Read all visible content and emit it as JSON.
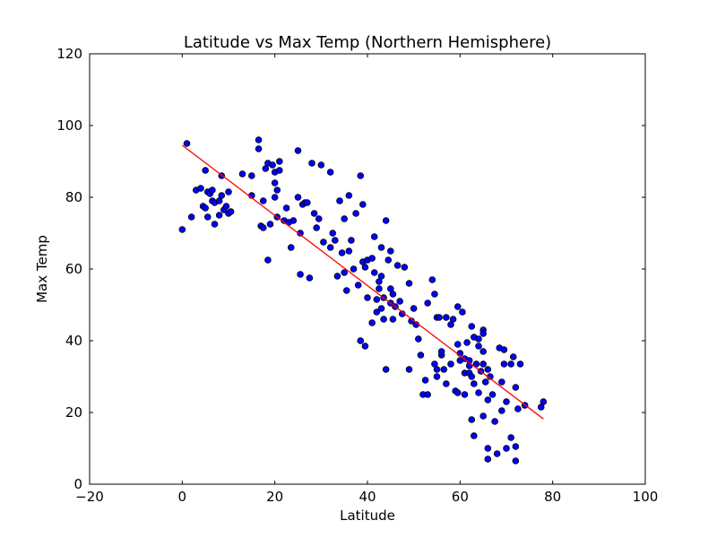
{
  "chart_data": {
    "type": "scatter",
    "title": "Latitude vs Max Temp (Northern Hemisphere)",
    "xlabel": "Latitude",
    "ylabel": "Max Temp",
    "xlim": [
      -20,
      100
    ],
    "ylim": [
      0,
      120
    ],
    "xticks": [
      -20,
      0,
      20,
      40,
      60,
      80,
      100
    ],
    "yticks": [
      0,
      20,
      40,
      60,
      80,
      100,
      120
    ],
    "xtick_labels": [
      "−20",
      "0",
      "20",
      "40",
      "60",
      "80",
      "100"
    ],
    "ytick_labels": [
      "0",
      "20",
      "40",
      "60",
      "80",
      "100",
      "120"
    ],
    "grid": false,
    "colors": {
      "points": "#0000ff",
      "point_edge": "#000000",
      "regression": "#ff0000"
    },
    "regression": {
      "x": [
        0,
        78
      ],
      "y": [
        94.5,
        18.2
      ]
    },
    "series": [
      {
        "points": [
          [
            0,
            71
          ],
          [
            1,
            95
          ],
          [
            2,
            74.5
          ],
          [
            3,
            82
          ],
          [
            4,
            82.5
          ],
          [
            4.5,
            77.5
          ],
          [
            5,
            77
          ],
          [
            5,
            87.5
          ],
          [
            5.5,
            74.5
          ],
          [
            5.5,
            81.5
          ],
          [
            6,
            81
          ],
          [
            6.5,
            79
          ],
          [
            6.5,
            82
          ],
          [
            7,
            72.5
          ],
          [
            7,
            78.5
          ],
          [
            8,
            79
          ],
          [
            8,
            75
          ],
          [
            8.5,
            86
          ],
          [
            8.5,
            80.5
          ],
          [
            9,
            76.5
          ],
          [
            9.5,
            77.5
          ],
          [
            10,
            81.5
          ],
          [
            10,
            75.5
          ],
          [
            10.5,
            76
          ],
          [
            13,
            86.5
          ],
          [
            15,
            86
          ],
          [
            15,
            80.5
          ],
          [
            16.5,
            96
          ],
          [
            16.5,
            93.5
          ],
          [
            17,
            72
          ],
          [
            17.5,
            71.5
          ],
          [
            17.5,
            79
          ],
          [
            18,
            88
          ],
          [
            18.5,
            89.5
          ],
          [
            18.5,
            62.5
          ],
          [
            19,
            72.5
          ],
          [
            19.5,
            89
          ],
          [
            20,
            84
          ],
          [
            20,
            80
          ],
          [
            20,
            87
          ],
          [
            20.5,
            82
          ],
          [
            20.5,
            74.5
          ],
          [
            21,
            90
          ],
          [
            21,
            87.5
          ],
          [
            22,
            73.5
          ],
          [
            22.5,
            77
          ],
          [
            23,
            73
          ],
          [
            23.5,
            66
          ],
          [
            24,
            73.5
          ],
          [
            25,
            93
          ],
          [
            25,
            80
          ],
          [
            25.5,
            58.5
          ],
          [
            25.5,
            70
          ],
          [
            26,
            78
          ],
          [
            26.5,
            78.5
          ],
          [
            27,
            78.5
          ],
          [
            27.5,
            57.5
          ],
          [
            28,
            89.5
          ],
          [
            28.5,
            75.5
          ],
          [
            29,
            71.5
          ],
          [
            29.5,
            74
          ],
          [
            30,
            89
          ],
          [
            30.5,
            67.5
          ],
          [
            32,
            66
          ],
          [
            32,
            87
          ],
          [
            32.5,
            70
          ],
          [
            33,
            68
          ],
          [
            33.5,
            58
          ],
          [
            34,
            79
          ],
          [
            34.5,
            64.5
          ],
          [
            35,
            74
          ],
          [
            35,
            59
          ],
          [
            35.5,
            54
          ],
          [
            36,
            80.5
          ],
          [
            36,
            65
          ],
          [
            36.5,
            68
          ],
          [
            37,
            60
          ],
          [
            37.5,
            75.5
          ],
          [
            38,
            55.5
          ],
          [
            38.5,
            86
          ],
          [
            38.5,
            40
          ],
          [
            39,
            78
          ],
          [
            39,
            62
          ],
          [
            39.5,
            60.5
          ],
          [
            39.5,
            38.5
          ],
          [
            40,
            52
          ],
          [
            40,
            62.5
          ],
          [
            41,
            63
          ],
          [
            41,
            45
          ],
          [
            41.5,
            59
          ],
          [
            41.5,
            69
          ],
          [
            42,
            51.5
          ],
          [
            42,
            48
          ],
          [
            42.5,
            54.5
          ],
          [
            42.5,
            56.5
          ],
          [
            43,
            49
          ],
          [
            43,
            58
          ],
          [
            43,
            66
          ],
          [
            43.5,
            52
          ],
          [
            43.5,
            46
          ],
          [
            44,
            32
          ],
          [
            44,
            73.5
          ],
          [
            44.5,
            62.5
          ],
          [
            45,
            50.5
          ],
          [
            45,
            54.5
          ],
          [
            45,
            65
          ],
          [
            45.5,
            53
          ],
          [
            45.5,
            46
          ],
          [
            46,
            49.5
          ],
          [
            46.5,
            61
          ],
          [
            47,
            51
          ],
          [
            47.5,
            47.5
          ],
          [
            48,
            60.5
          ],
          [
            49,
            56
          ],
          [
            49,
            32
          ],
          [
            49.5,
            45.5
          ],
          [
            50,
            49
          ],
          [
            50.5,
            44.5
          ],
          [
            51,
            40.5
          ],
          [
            51.5,
            36
          ],
          [
            52,
            25
          ],
          [
            52.5,
            29
          ],
          [
            53,
            50.5
          ],
          [
            53,
            25
          ],
          [
            54,
            57
          ],
          [
            54.5,
            53
          ],
          [
            54.5,
            33.5
          ],
          [
            55,
            32
          ],
          [
            55,
            30
          ],
          [
            55,
            46.5
          ],
          [
            55.5,
            46.5
          ],
          [
            56,
            36
          ],
          [
            56,
            37
          ],
          [
            56.5,
            32
          ],
          [
            57,
            28
          ],
          [
            57,
            46.5
          ],
          [
            58,
            44.5
          ],
          [
            58,
            33.5
          ],
          [
            58.5,
            46
          ],
          [
            59,
            26
          ],
          [
            59.5,
            39
          ],
          [
            59.5,
            49.5
          ],
          [
            59.5,
            25.5
          ],
          [
            60,
            34.5
          ],
          [
            60,
            36.5
          ],
          [
            60.5,
            48
          ],
          [
            61,
            31
          ],
          [
            61,
            35
          ],
          [
            61,
            25
          ],
          [
            61.5,
            39.5
          ],
          [
            62,
            31
          ],
          [
            62,
            33
          ],
          [
            62,
            34.5
          ],
          [
            62.5,
            30
          ],
          [
            62.5,
            44
          ],
          [
            62.5,
            18
          ],
          [
            63,
            41
          ],
          [
            63,
            13.5
          ],
          [
            63,
            28
          ],
          [
            63.5,
            33.5
          ],
          [
            64,
            40.5
          ],
          [
            64,
            38.5
          ],
          [
            64,
            25.5
          ],
          [
            64.5,
            31.5
          ],
          [
            65,
            43
          ],
          [
            65,
            42
          ],
          [
            65,
            37
          ],
          [
            65,
            33.5
          ],
          [
            65,
            19
          ],
          [
            65.5,
            28.5
          ],
          [
            66,
            32
          ],
          [
            66,
            23.5
          ],
          [
            66,
            10
          ],
          [
            66,
            7
          ],
          [
            66.5,
            30
          ],
          [
            67,
            25
          ],
          [
            67.5,
            17.5
          ],
          [
            68,
            8.5
          ],
          [
            68.5,
            38
          ],
          [
            69,
            20.5
          ],
          [
            69,
            28.5
          ],
          [
            69.5,
            37.5
          ],
          [
            69.5,
            33.5
          ],
          [
            70,
            10
          ],
          [
            70,
            23
          ],
          [
            71,
            33.5
          ],
          [
            71,
            13
          ],
          [
            71.5,
            35.5
          ],
          [
            72,
            27
          ],
          [
            72,
            10.5
          ],
          [
            72,
            6.5
          ],
          [
            72.5,
            21
          ],
          [
            73,
            33.5
          ],
          [
            74,
            22
          ],
          [
            77.5,
            21.5
          ],
          [
            78,
            23
          ]
        ]
      }
    ]
  }
}
